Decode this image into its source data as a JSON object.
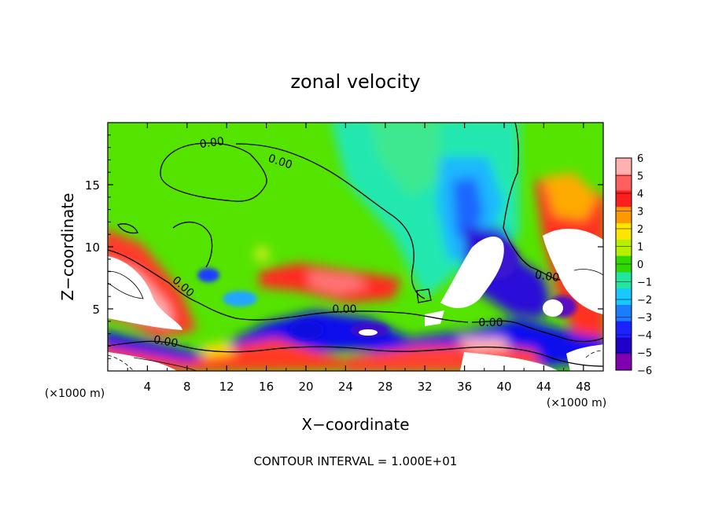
{
  "chart_data": {
    "type": "heatmap",
    "title": "zonal velocity",
    "xlabel": "X−coordinate",
    "ylabel": "Z−coordinate",
    "x_unit_left": "(×1000 m)",
    "x_unit_right": "(×1000 m)",
    "footer": "CONTOUR INTERVAL = 1.000E+01",
    "xlim": [
      0,
      50
    ],
    "ylim": [
      0,
      20
    ],
    "x_ticks": [
      4,
      8,
      12,
      16,
      20,
      24,
      28,
      32,
      36,
      40,
      44,
      48
    ],
    "y_ticks": [
      5,
      10,
      15
    ],
    "colorbar": {
      "ticks": [
        6,
        5,
        4,
        3,
        2,
        1,
        0,
        -1,
        -2,
        -3,
        -4,
        -5,
        -6
      ],
      "range": [
        -6,
        6
      ]
    },
    "contour_labels": [
      "0.00",
      "0.00",
      "0.00",
      "0.00",
      "0.00",
      "0.00",
      "0.00"
    ],
    "grid": false
  }
}
